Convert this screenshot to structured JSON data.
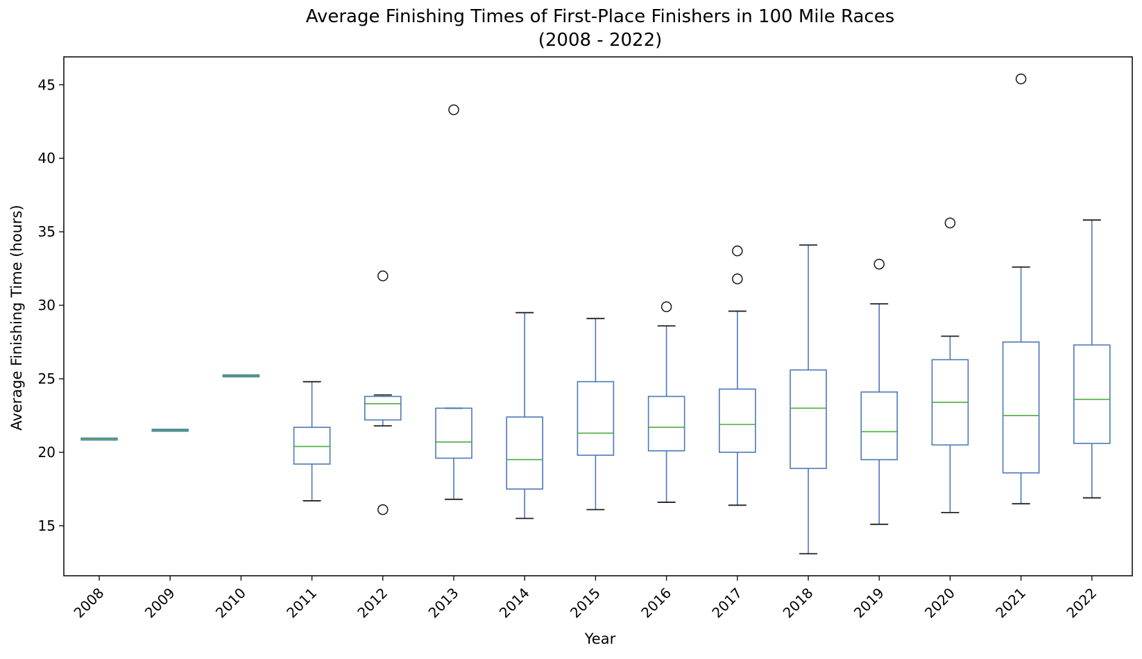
{
  "chart_data": {
    "type": "box",
    "title": "Average Finishing Times of First-Place Finishers in 100 Mile Races",
    "subtitle": "(2008 - 2022)",
    "xlabel": "Year",
    "ylabel": "Average Finishing Time (hours)",
    "ylim": [
      11.6,
      46.9
    ],
    "yticks": [
      15,
      20,
      25,
      30,
      35,
      40,
      45
    ],
    "grid": false,
    "colors": {
      "box": "#4a78b8",
      "median": "#4daa3d",
      "outlier": "#222222",
      "axis": "#000000"
    },
    "categories": [
      "2008",
      "2009",
      "2010",
      "2011",
      "2012",
      "2013",
      "2014",
      "2015",
      "2016",
      "2017",
      "2018",
      "2019",
      "2020",
      "2021",
      "2022"
    ],
    "boxes": [
      {
        "category": "2008",
        "whisker_low": 20.9,
        "q1": 20.9,
        "median": 20.9,
        "q3": 20.9,
        "whisker_high": 20.9,
        "outliers": []
      },
      {
        "category": "2009",
        "whisker_low": 21.5,
        "q1": 21.5,
        "median": 21.5,
        "q3": 21.5,
        "whisker_high": 21.5,
        "outliers": []
      },
      {
        "category": "2010",
        "whisker_low": 25.2,
        "q1": 25.2,
        "median": 25.2,
        "q3": 25.2,
        "whisker_high": 25.2,
        "outliers": []
      },
      {
        "category": "2011",
        "whisker_low": 16.7,
        "q1": 19.2,
        "median": 20.4,
        "q3": 21.7,
        "whisker_high": 24.8,
        "outliers": []
      },
      {
        "category": "2012",
        "whisker_low": 21.8,
        "q1": 22.2,
        "median": 23.3,
        "q3": 23.8,
        "whisker_high": 23.9,
        "outliers": [
          32.0,
          16.1
        ]
      },
      {
        "category": "2013",
        "whisker_low": 16.8,
        "q1": 19.6,
        "median": 20.7,
        "q3": 23.0,
        "whisker_high": 23.0,
        "outliers": [
          43.3
        ]
      },
      {
        "category": "2014",
        "whisker_low": 15.5,
        "q1": 17.5,
        "median": 19.5,
        "q3": 22.4,
        "whisker_high": 29.5,
        "outliers": []
      },
      {
        "category": "2015",
        "whisker_low": 16.1,
        "q1": 19.8,
        "median": 21.3,
        "q3": 24.8,
        "whisker_high": 29.1,
        "outliers": []
      },
      {
        "category": "2016",
        "whisker_low": 16.6,
        "q1": 20.1,
        "median": 21.7,
        "q3": 23.8,
        "whisker_high": 28.6,
        "outliers": [
          29.9
        ]
      },
      {
        "category": "2017",
        "whisker_low": 16.4,
        "q1": 20.0,
        "median": 21.9,
        "q3": 24.3,
        "whisker_high": 29.6,
        "outliers": [
          33.7,
          31.8
        ]
      },
      {
        "category": "2018",
        "whisker_low": 13.1,
        "q1": 18.9,
        "median": 23.0,
        "q3": 25.6,
        "whisker_high": 34.1,
        "outliers": []
      },
      {
        "category": "2019",
        "whisker_low": 15.1,
        "q1": 19.5,
        "median": 21.4,
        "q3": 24.1,
        "whisker_high": 30.1,
        "outliers": [
          32.8
        ]
      },
      {
        "category": "2020",
        "whisker_low": 15.9,
        "q1": 20.5,
        "median": 23.4,
        "q3": 26.3,
        "whisker_high": 27.9,
        "outliers": [
          35.6
        ]
      },
      {
        "category": "2021",
        "whisker_low": 16.5,
        "q1": 18.6,
        "median": 22.5,
        "q3": 27.5,
        "whisker_high": 32.6,
        "outliers": [
          45.4
        ]
      },
      {
        "category": "2022",
        "whisker_low": 16.9,
        "q1": 20.6,
        "median": 23.6,
        "q3": 27.3,
        "whisker_high": 35.8,
        "outliers": []
      }
    ]
  }
}
